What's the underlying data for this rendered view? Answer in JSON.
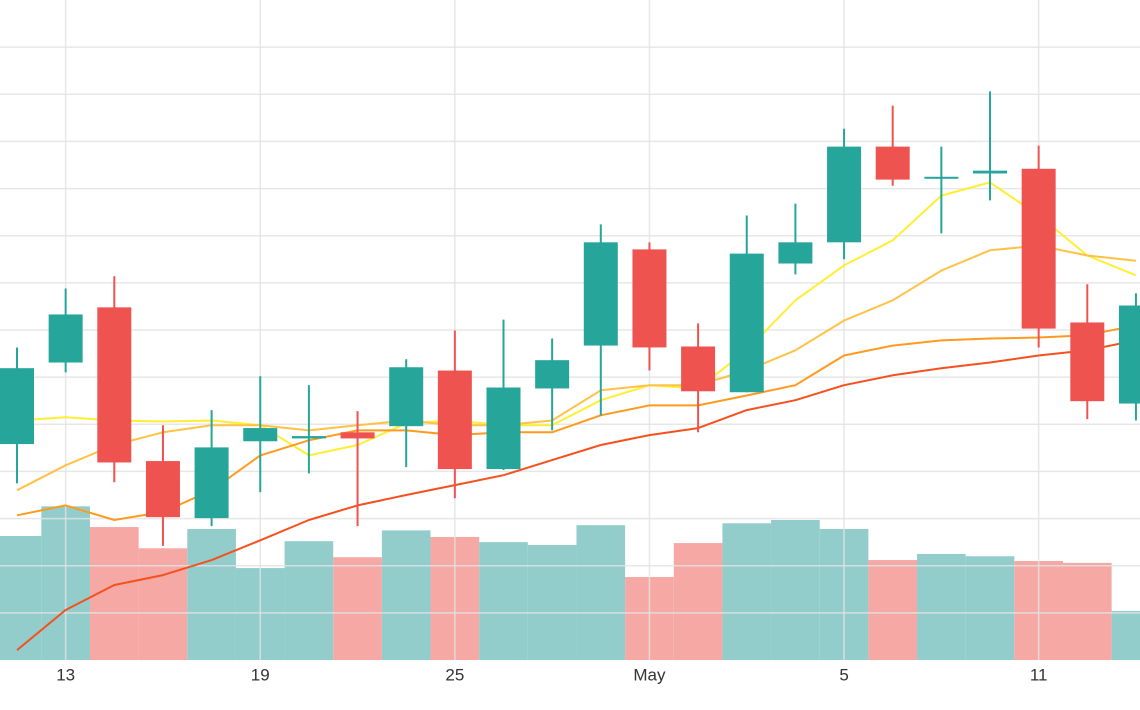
{
  "chart_data": {
    "type": "candlestick",
    "categories": [
      null,
      "13",
      null,
      null,
      null,
      "19",
      null,
      null,
      null,
      "25",
      null,
      null,
      null,
      "May",
      null,
      null,
      null,
      "5",
      null,
      null,
      null,
      "11",
      null,
      null
    ],
    "open": [
      4.58,
      6.31,
      7.48,
      4.22,
      3.01,
      4.64,
      4.7,
      4.83,
      4.96,
      6.14,
      4.05,
      5.76,
      6.67,
      8.71,
      6.65,
      5.68,
      8.41,
      8.86,
      10.89,
      10.23,
      10.32,
      10.42,
      7.16,
      5.44
    ],
    "high": [
      6.63,
      7.88,
      8.14,
      4.98,
      5.3,
      6.02,
      5.83,
      5.28,
      6.38,
      6.99,
      7.22,
      6.82,
      9.24,
      8.86,
      7.14,
      9.43,
      9.68,
      11.27,
      11.76,
      10.89,
      12.06,
      10.91,
      7.97,
      7.78
    ],
    "low": [
      3.75,
      6.1,
      3.77,
      2.42,
      2.84,
      3.56,
      3.96,
      2.84,
      4.09,
      3.43,
      4.03,
      4.87,
      5.19,
      6.14,
      4.83,
      5.68,
      8.18,
      8.5,
      10.06,
      9.05,
      9.75,
      6.63,
      5.11,
      5.08
    ],
    "close": [
      6.19,
      7.33,
      4.19,
      3.03,
      4.51,
      4.92,
      4.75,
      4.7,
      6.21,
      4.05,
      5.78,
      6.36,
      8.86,
      6.63,
      5.7,
      8.62,
      8.86,
      10.89,
      10.19,
      10.25,
      10.38,
      7.03,
      5.49,
      7.52
    ],
    "volume": [
      2.63,
      3.26,
      2.82,
      2.37,
      2.78,
      1.95,
      2.52,
      2.18,
      2.75,
      2.61,
      2.5,
      2.44,
      2.86,
      1.76,
      2.48,
      2.9,
      2.97,
      2.78,
      2.12,
      2.25,
      2.2,
      2.1,
      2.06,
      1.04
    ],
    "up_color": "#26a69a",
    "down_color": "#ef5350",
    "volume_up_color": "#92cdcc",
    "volume_down_color": "#f5a8a4",
    "series": [
      {
        "color": "#ffee33",
        "values": [
          5.08,
          5.15,
          5.08,
          5.06,
          5.08,
          4.98,
          4.34,
          4.56,
          5.02,
          5.08,
          4.98,
          4.98,
          5.51,
          5.83,
          5.76,
          6.57,
          7.63,
          8.37,
          8.9,
          9.85,
          10.13,
          9.43,
          8.58,
          8.16
        ]
      },
      {
        "color": "#ffc247",
        "values": [
          3.6,
          4.13,
          4.56,
          4.83,
          4.98,
          4.98,
          4.87,
          4.98,
          5.08,
          4.98,
          4.98,
          5.08,
          5.72,
          5.83,
          5.83,
          6.14,
          6.57,
          7.2,
          7.63,
          8.26,
          8.69,
          8.79,
          8.58,
          8.47
        ]
      },
      {
        "color": "#ff9a1f",
        "values": [
          3.07,
          3.28,
          2.97,
          3.14,
          3.6,
          4.34,
          4.66,
          4.87,
          4.87,
          4.77,
          4.83,
          4.83,
          5.19,
          5.4,
          5.4,
          5.61,
          5.83,
          6.46,
          6.67,
          6.78,
          6.82,
          6.84,
          6.89,
          7.1
        ]
      },
      {
        "color": "#f4511e",
        "values": [
          0.21,
          1.06,
          1.59,
          1.8,
          2.12,
          2.54,
          2.97,
          3.28,
          3.5,
          3.71,
          3.92,
          4.24,
          4.56,
          4.77,
          4.92,
          5.3,
          5.51,
          5.83,
          6.04,
          6.19,
          6.31,
          6.46,
          6.57,
          6.78
        ]
      }
    ],
    "ylim": [
      0,
      14
    ],
    "yticks": [
      1,
      2,
      3,
      4,
      5,
      6,
      7,
      8,
      9,
      10,
      11,
      12,
      13
    ],
    "grid": true
  }
}
